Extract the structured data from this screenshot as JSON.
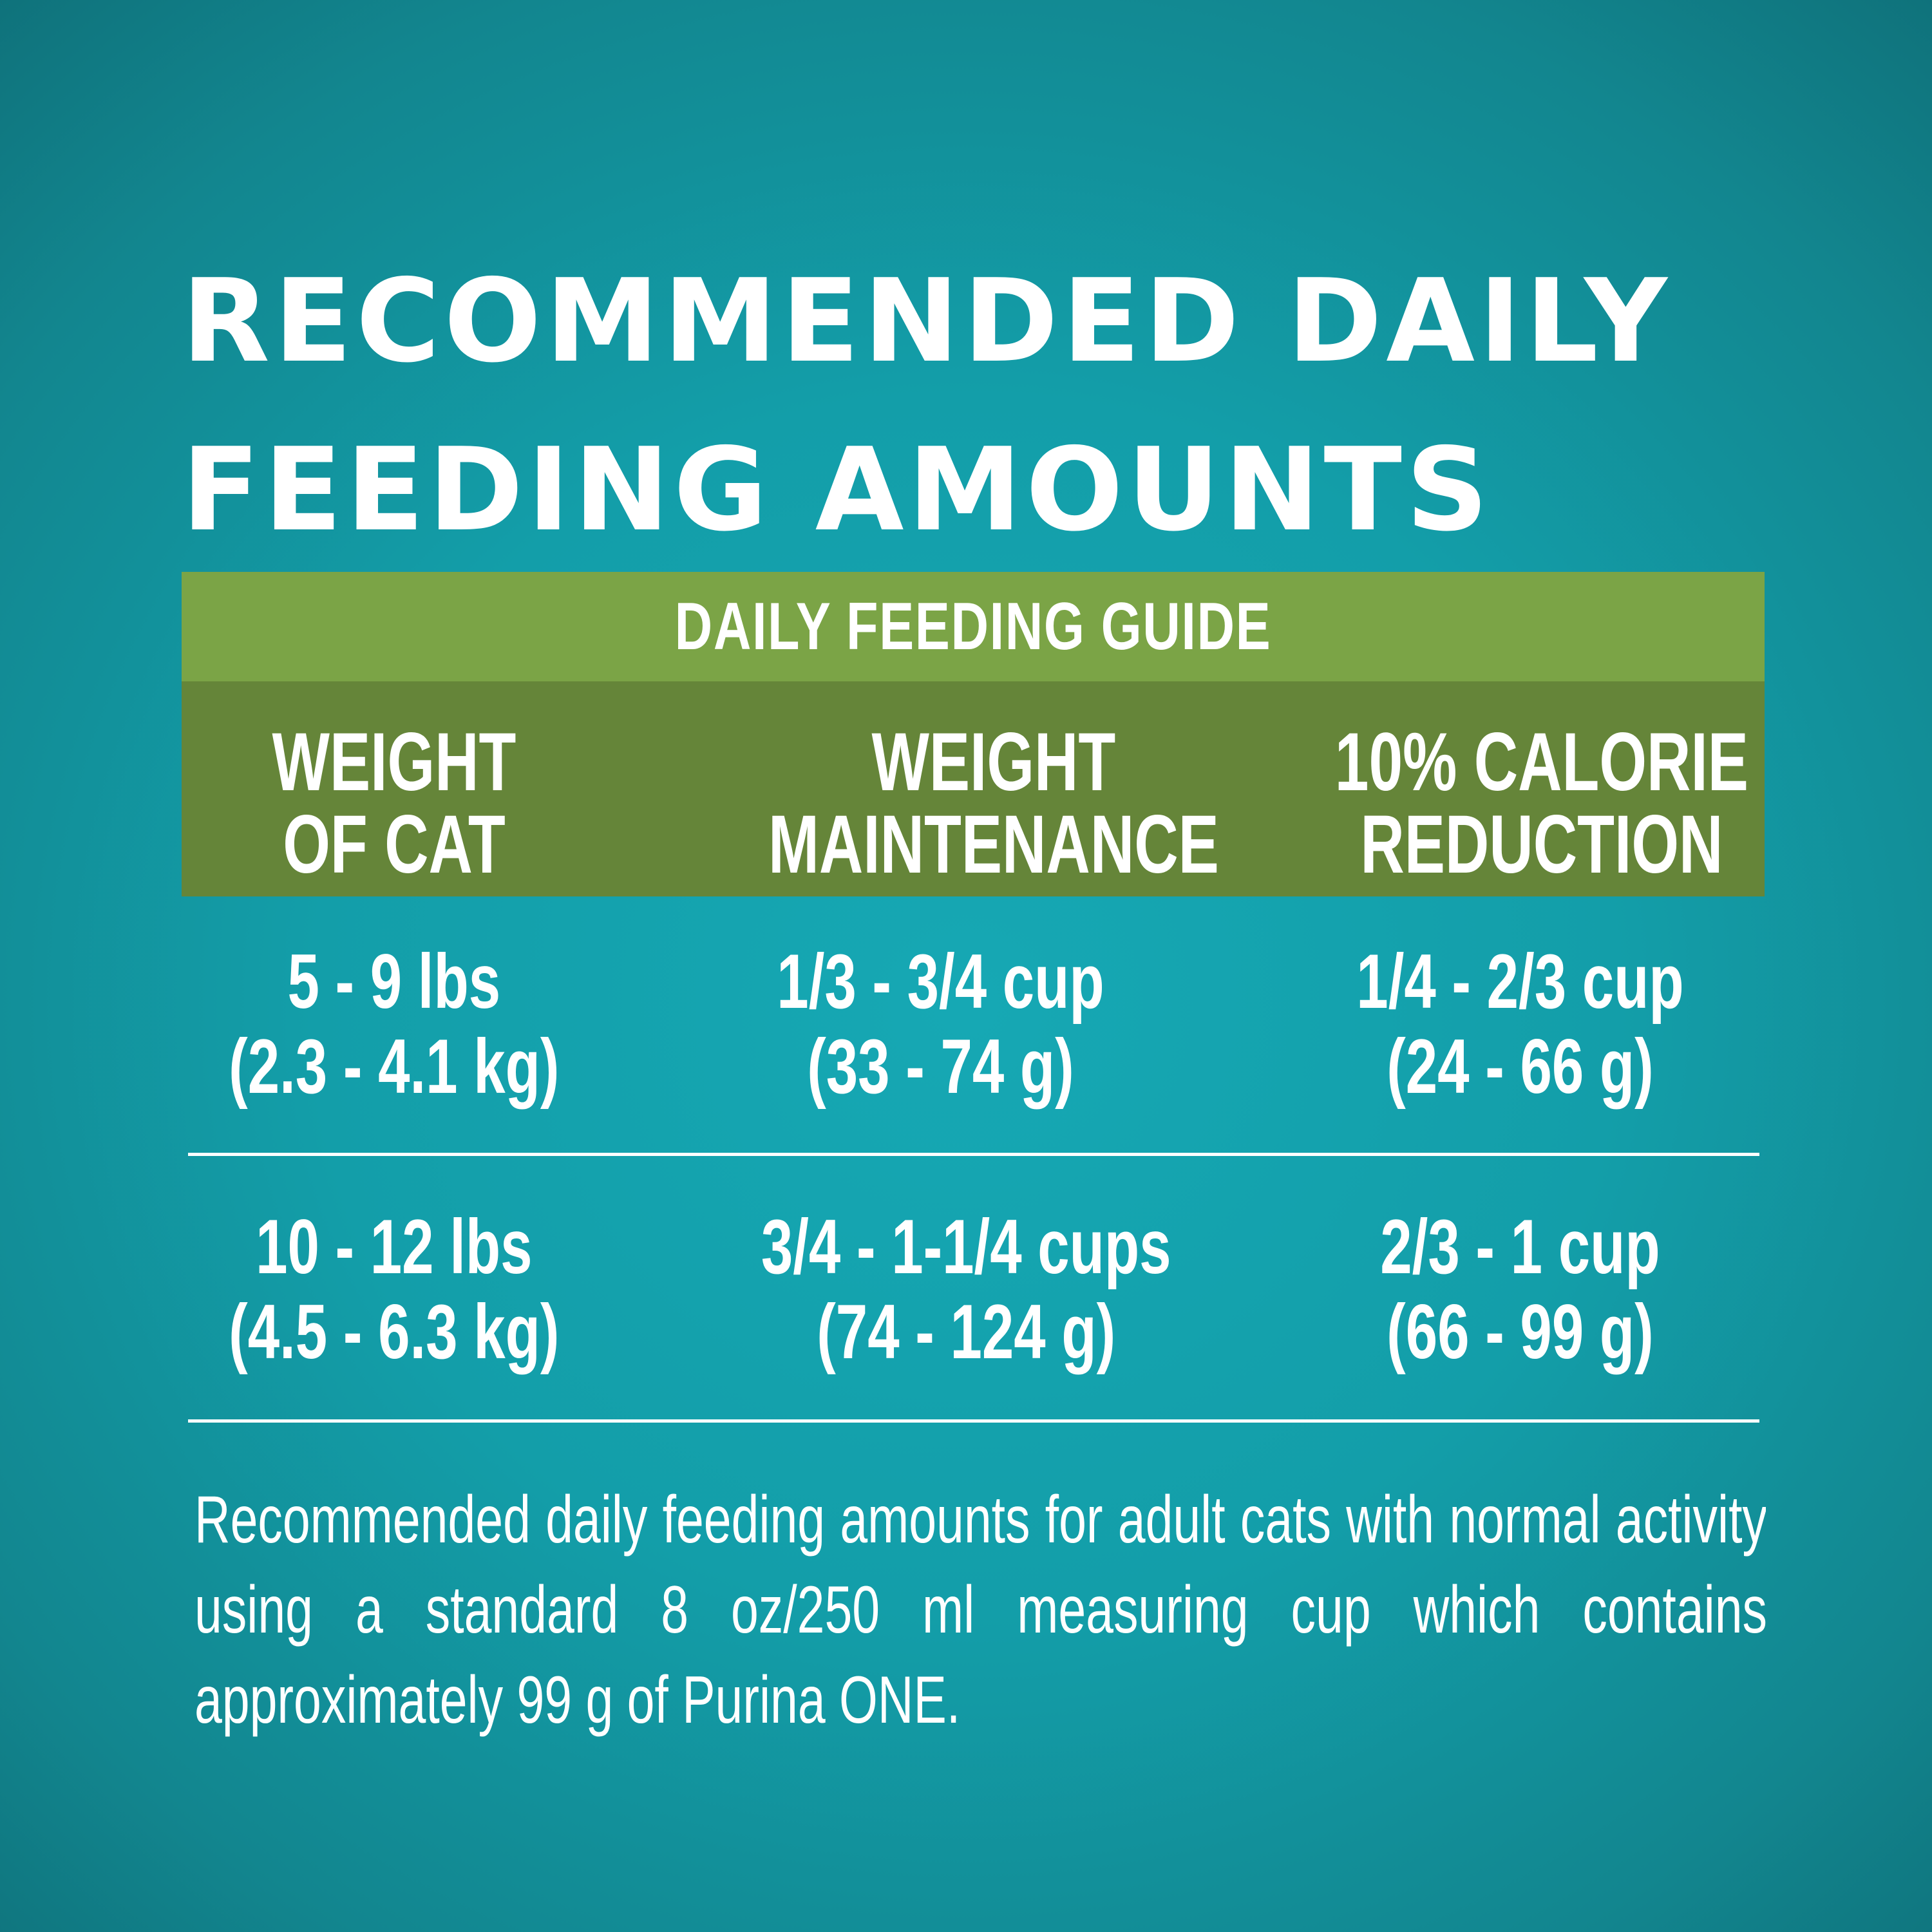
{
  "title": {
    "line1": "RECOMMENDED DAILY",
    "line2": "FEEDING AMOUNTS"
  },
  "table": {
    "caption": "DAILY FEEDING GUIDE",
    "headers": [
      {
        "line1": "WEIGHT",
        "line2": "OF CAT"
      },
      {
        "line1": "WEIGHT",
        "line2": "MAINTENANCE"
      },
      {
        "line1": "10% CALORIE",
        "line2": "REDUCTION"
      }
    ],
    "rows": [
      {
        "weight": {
          "line1": "5 - 9 lbs",
          "line2": "(2.3 - 4.1 kg)"
        },
        "maintenance": {
          "line1": "1/3 - 3/4 cup",
          "line2": "(33 - 74 g)"
        },
        "reduction": {
          "line1": "1/4 - 2/3 cup",
          "line2": "(24 - 66 g)"
        }
      },
      {
        "weight": {
          "line1": "10 - 12 lbs",
          "line2": "(4.5 - 6.3 kg)"
        },
        "maintenance": {
          "line1": "3/4 - 1-1/4 cups",
          "line2": "(74 - 124 g)"
        },
        "reduction": {
          "line1": "2/3 - 1 cup",
          "line2": "(66 - 99 g)"
        }
      }
    ]
  },
  "note": "Recommended daily feeding amounts for adult cats with normal activity using a standard 8 oz/250 ml measuring cup which contains approximately 99 g of Purina ONE.",
  "colors": {
    "background": "#139ea9",
    "guide_bar": "#7ba446",
    "header_band": "#658539",
    "text": "#ffffff"
  }
}
